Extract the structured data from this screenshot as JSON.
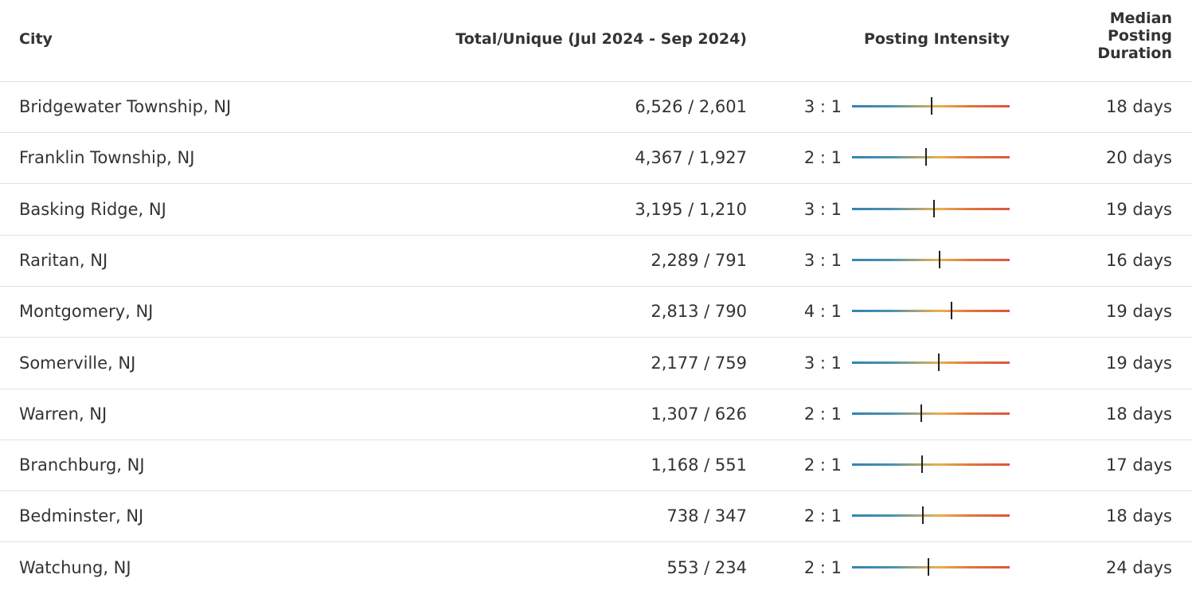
{
  "table": {
    "header": {
      "city": "City",
      "total": "Total/Unique (Jul 2024 - Sep 2024)",
      "intensity": "Posting Intensity",
      "duration": "Median Posting Duration"
    },
    "rows": [
      {
        "city": "Bridgewater Township, NJ",
        "total": "6,526 / 2,601",
        "intensity": "3 : 1",
        "marker": 50.5,
        "duration": "18 days"
      },
      {
        "city": "Franklin Township, NJ",
        "total": "4,367 / 1,927",
        "intensity": "2 : 1",
        "marker": 47,
        "duration": "20 days"
      },
      {
        "city": "Basking Ridge, NJ",
        "total": "3,195 / 1,210",
        "intensity": "3 : 1",
        "marker": 52,
        "duration": "19 days"
      },
      {
        "city": "Raritan, NJ",
        "total": "2,289 / 791",
        "intensity": "3 : 1",
        "marker": 55.5,
        "duration": "16 days"
      },
      {
        "city": "Montgomery, NJ",
        "total": "2,813 / 790",
        "intensity": "4 : 1",
        "marker": 63,
        "duration": "19 days"
      },
      {
        "city": "Somerville, NJ",
        "total": "2,177 / 759",
        "intensity": "3 : 1",
        "marker": 55,
        "duration": "19 days"
      },
      {
        "city": "Warren, NJ",
        "total": "1,307 / 626",
        "intensity": "2 : 1",
        "marker": 44,
        "duration": "18 days"
      },
      {
        "city": "Branchburg, NJ",
        "total": "1,168 / 551",
        "intensity": "2 : 1",
        "marker": 44.5,
        "duration": "17 days"
      },
      {
        "city": "Bedminster, NJ",
        "total": "738 / 347",
        "intensity": "2 : 1",
        "marker": 45,
        "duration": "18 days"
      },
      {
        "city": "Watchung, NJ",
        "total": "553 / 234",
        "intensity": "2 : 1",
        "marker": 48.5,
        "duration": "24 days"
      }
    ]
  }
}
